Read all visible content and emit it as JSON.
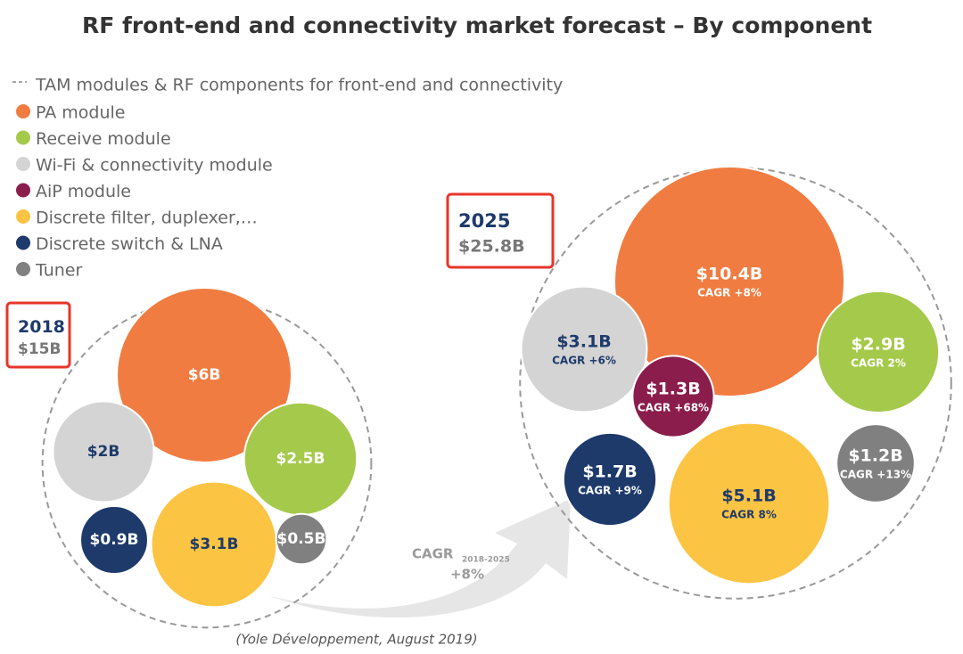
{
  "title": "RF front-end and connectivity market forecast – By component",
  "legend_total": "TAM modules & RF components for front-end and connectivity",
  "legend": [
    {
      "name": "PA module",
      "color": "#f07c41"
    },
    {
      "name": "Receive module",
      "color": "#a5c94a"
    },
    {
      "name": "Wi-Fi & connectivity module",
      "color": "#d4d4d4"
    },
    {
      "name": "AiP module",
      "color": "#8b1d4c"
    },
    {
      "name": "Discrete filter, duplexer,…",
      "color": "#fcc443"
    },
    {
      "name": "Discrete switch & LNA",
      "color": "#1e3a6b"
    },
    {
      "name": "Tuner",
      "color": "#808080"
    }
  ],
  "chart_data": [
    {
      "type": "bubble",
      "title": "2018",
      "total": {
        "value": 15,
        "label": "$15B"
      },
      "values": [
        6,
        2.5,
        2,
        null,
        3.1,
        0.9,
        0.5
      ],
      "value_labels": [
        "$6B",
        "$2.5B",
        "$2B",
        null,
        "$3.1B",
        "$0.9B",
        "$0.5B"
      ]
    },
    {
      "type": "bubble",
      "title": "2025",
      "total": {
        "value": 25.8,
        "label": "$25.8B"
      },
      "values": [
        10.4,
        2.9,
        3.1,
        1.3,
        5.1,
        1.7,
        1.2
      ],
      "value_labels": [
        "$10.4B",
        "$2.9B",
        "$3.1B",
        "$1.3B",
        "$5.1B",
        "$1.7B",
        "$1.2B"
      ],
      "cagr_labels": [
        "CAGR +8%",
        "CAGR 2%",
        "CAGR +6%",
        "CAGR +68%",
        "CAGR 8%",
        "CAGR +9%",
        "CAGR +13%"
      ]
    }
  ],
  "growth": {
    "label": "CAGR",
    "period": "2018-2025",
    "value": "+8%"
  },
  "source": "(Yole Développement, August 2019)"
}
